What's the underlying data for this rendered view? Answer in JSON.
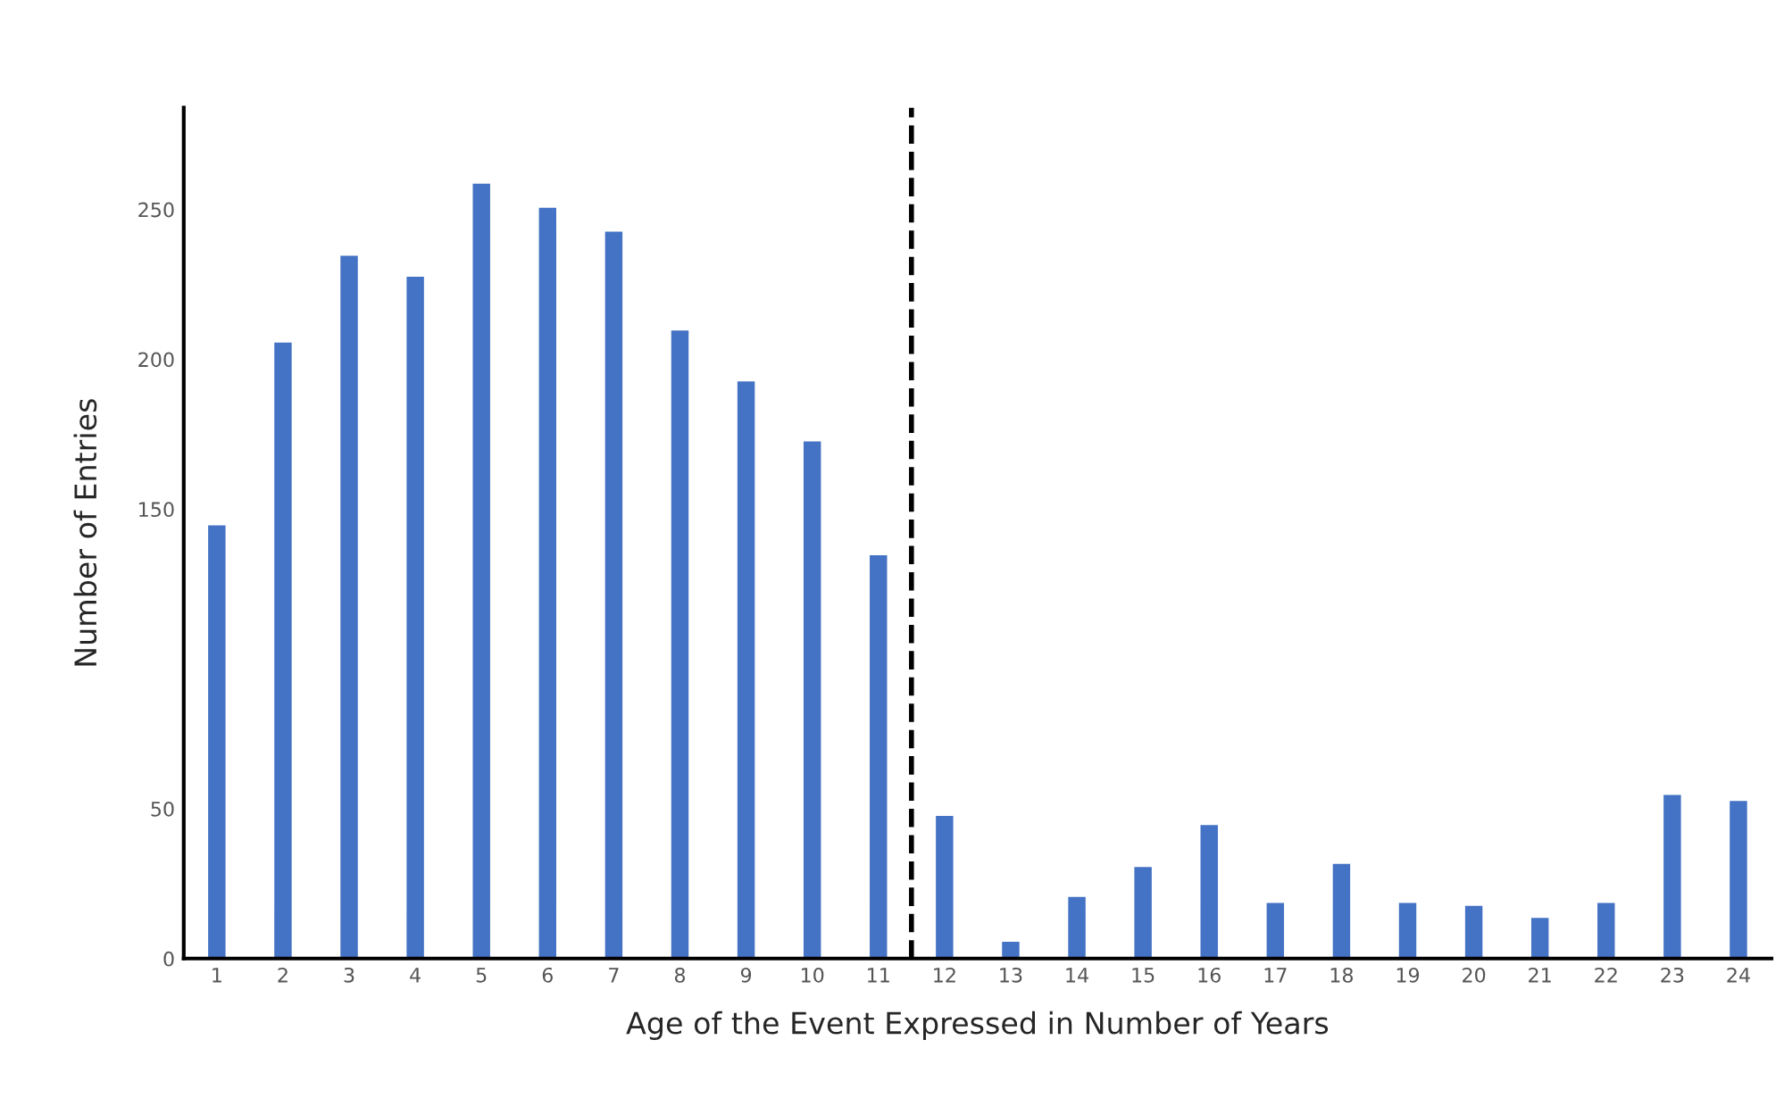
{
  "chart_data": {
    "type": "bar",
    "xlabel": "Age of the Event Expressed in Number of Years",
    "ylabel": "Number of Entries",
    "x": [
      1,
      2,
      3,
      4,
      5,
      6,
      7,
      8,
      9,
      10,
      11,
      12,
      13,
      14,
      15,
      16,
      17,
      18,
      19,
      20,
      21,
      22,
      23,
      24
    ],
    "values": [
      145,
      206,
      235,
      228,
      259,
      251,
      243,
      210,
      193,
      173,
      135,
      48,
      6,
      21,
      31,
      45,
      19,
      32,
      19,
      18,
      14,
      19,
      55,
      53
    ],
    "color": "#4472c4",
    "xlim": [
      0.5,
      24.5
    ],
    "xticks": [
      1,
      2,
      3,
      4,
      5,
      6,
      7,
      8,
      9,
      10,
      11,
      12,
      13,
      14,
      15,
      16,
      17,
      18,
      19,
      20,
      21,
      22,
      23,
      24
    ],
    "ylim": [
      0,
      284
    ],
    "yticks": [
      0,
      50,
      150,
      200,
      250
    ],
    "ref_lines": [
      {
        "axis": "x",
        "value": 11.5,
        "color": "#000000",
        "line_style": "dashed"
      }
    ],
    "grid": false,
    "legend": false
  }
}
